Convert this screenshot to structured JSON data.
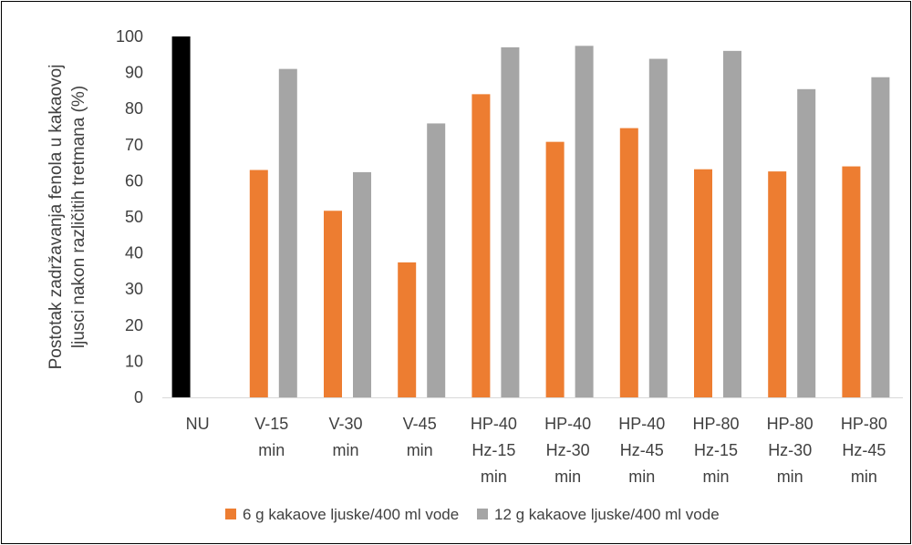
{
  "chart_data": {
    "type": "bar",
    "ylabel_lines": [
      "Postotak zadržavanja fenola u kakaovoj",
      "ljusci nakon različitih tretmana (%)"
    ],
    "xlabel": "",
    "ylim": [
      0,
      100
    ],
    "y_ticks": [
      0,
      10,
      20,
      30,
      40,
      50,
      60,
      70,
      80,
      90,
      100
    ],
    "categories": [
      [
        "NU"
      ],
      [
        "V-15",
        "min"
      ],
      [
        "V-30",
        "min"
      ],
      [
        "V-45",
        "min"
      ],
      [
        "HP-40",
        "Hz-15",
        "min"
      ],
      [
        "HP-40",
        "Hz-30",
        "min"
      ],
      [
        "HP-40",
        "Hz-45",
        "min"
      ],
      [
        "HP-80",
        "Hz-15",
        "min"
      ],
      [
        "HP-80",
        "Hz-30",
        "min"
      ],
      [
        "HP-80",
        "Hz-45",
        "min"
      ]
    ],
    "reference_bar": {
      "category_index": 0,
      "value": 100,
      "color": "#000000"
    },
    "series": [
      {
        "name": "6 g kakaove ljuske/400 ml vode",
        "color": "#ED7D31",
        "values": [
          null,
          63,
          51.7,
          37.4,
          84,
          70.8,
          74.6,
          63.2,
          62.6,
          64
        ]
      },
      {
        "name": "12 g kakaove ljuske/400 ml vode",
        "color": "#A5A5A5",
        "values": [
          null,
          91,
          62.4,
          75.9,
          97,
          97.4,
          93.8,
          96,
          85.4,
          88.7
        ]
      }
    ],
    "grid": false,
    "legend_position": "bottom"
  }
}
